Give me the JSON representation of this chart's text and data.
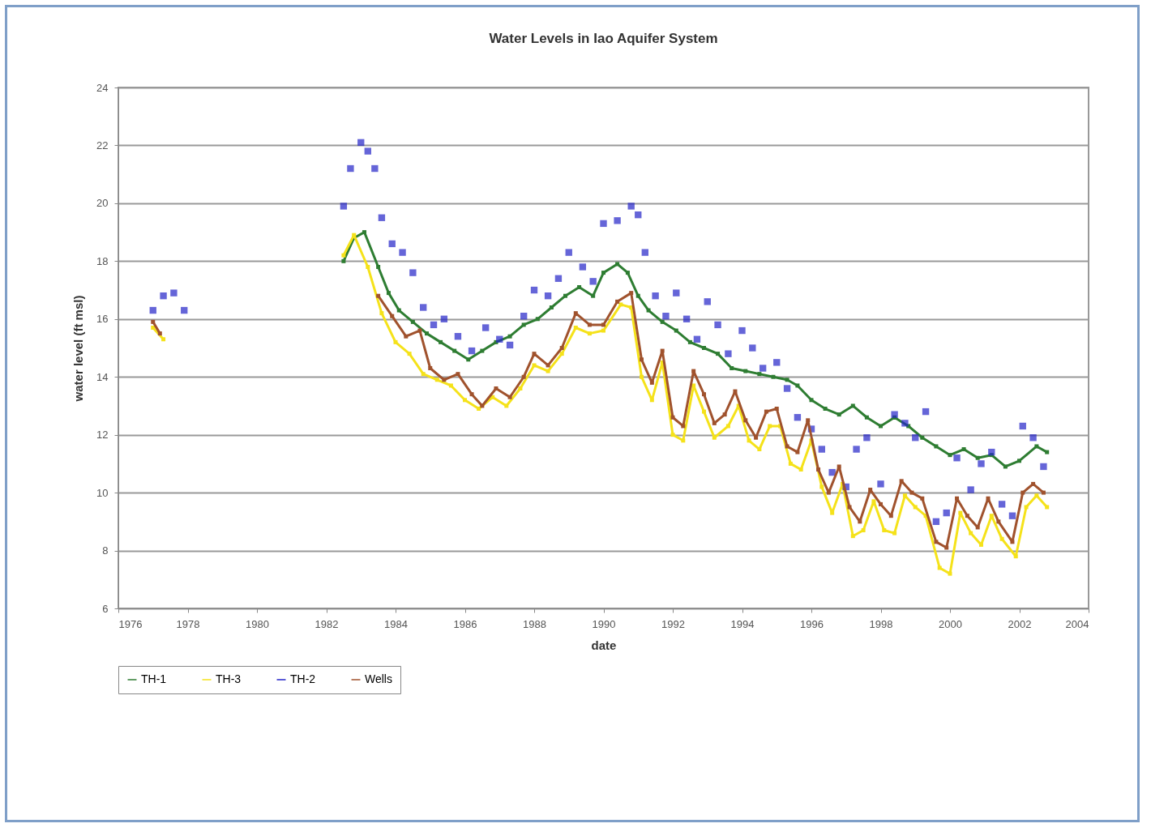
{
  "chart_data": {
    "type": "line",
    "title": "Water Levels in Iao Aquifer System",
    "xlabel": "date",
    "ylabel": "water level (ft msl)",
    "xlim": [
      1976,
      2004
    ],
    "xticks": [
      1976,
      1978,
      1980,
      1982,
      1984,
      1986,
      1988,
      1990,
      1992,
      1994,
      1996,
      1998,
      2000,
      2002,
      2004
    ],
    "ylim": [
      6,
      24
    ],
    "yticks": [
      6,
      8,
      10,
      12,
      14,
      16,
      18,
      20,
      22,
      24
    ],
    "grid": "y",
    "legend": "bottom",
    "marker": "square",
    "series": [
      {
        "name": "TH-1",
        "color": "#2e7d32",
        "x": [
          1982.5,
          1982.8,
          1983.1,
          1983.5,
          1983.8,
          1984.1,
          1984.5,
          1984.9,
          1985.3,
          1985.7,
          1986.1,
          1986.5,
          1986.9,
          1987.3,
          1987.7,
          1988.1,
          1988.5,
          1988.9,
          1989.3,
          1989.7,
          1990.0,
          1990.4,
          1990.7,
          1991.0,
          1991.3,
          1991.7,
          1992.1,
          1992.5,
          1992.9,
          1993.3,
          1993.7,
          1994.1,
          1994.5,
          1994.9,
          1995.3,
          1995.6,
          1996.0,
          1996.4,
          1996.8,
          1997.2,
          1997.6,
          1998.0,
          1998.4,
          1998.8,
          1999.2,
          1999.6,
          2000.0,
          2000.4,
          2000.8,
          2001.2,
          2001.6,
          2002.0,
          2002.5,
          2002.8
        ],
        "values": [
          18.0,
          18.8,
          19.0,
          17.8,
          16.9,
          16.3,
          15.9,
          15.5,
          15.2,
          14.9,
          14.6,
          14.9,
          15.2,
          15.4,
          15.8,
          16.0,
          16.4,
          16.8,
          17.1,
          16.8,
          17.6,
          17.9,
          17.6,
          16.8,
          16.3,
          15.9,
          15.6,
          15.2,
          15.0,
          14.8,
          14.3,
          14.2,
          14.1,
          14.0,
          13.9,
          13.7,
          13.2,
          12.9,
          12.7,
          13.0,
          12.6,
          12.3,
          12.6,
          12.3,
          11.9,
          11.6,
          11.3,
          11.5,
          11.2,
          11.3,
          10.9,
          11.1,
          11.6,
          11.4
        ]
      },
      {
        "name": "TH-3",
        "color": "#f5e21a",
        "x": [
          1977.0,
          1977.3,
          1980.0,
          1982.5,
          1982.8,
          1983.2,
          1983.6,
          1984.0,
          1984.4,
          1984.8,
          1985.2,
          1985.6,
          1986.0,
          1986.4,
          1986.8,
          1987.2,
          1987.6,
          1988.0,
          1988.4,
          1988.8,
          1989.2,
          1989.6,
          1990.0,
          1990.5,
          1990.8,
          1991.1,
          1991.4,
          1991.7,
          1992.0,
          1992.3,
          1992.6,
          1992.9,
          1993.2,
          1993.6,
          1993.9,
          1994.2,
          1994.5,
          1994.8,
          1995.1,
          1995.4,
          1995.7,
          1996.0,
          1996.3,
          1996.6,
          1996.9,
          1997.2,
          1997.5,
          1997.8,
          1998.1,
          1998.4,
          1998.7,
          1999.0,
          1999.3,
          1999.7,
          2000.0,
          2000.3,
          2000.6,
          2000.9,
          2001.2,
          2001.5,
          2001.9,
          2002.2,
          2002.5,
          2002.8
        ],
        "values": [
          15.7,
          15.3,
          null,
          18.2,
          18.9,
          17.8,
          16.2,
          15.2,
          14.8,
          14.1,
          13.9,
          13.7,
          13.2,
          12.9,
          13.3,
          13.0,
          13.6,
          14.4,
          14.2,
          14.8,
          15.7,
          15.5,
          15.6,
          16.5,
          16.4,
          14.0,
          13.2,
          14.5,
          12.0,
          11.8,
          13.7,
          12.8,
          11.9,
          12.3,
          13.0,
          11.8,
          11.5,
          12.3,
          12.3,
          11.0,
          10.8,
          11.8,
          10.2,
          9.3,
          10.3,
          8.5,
          8.7,
          9.7,
          8.7,
          8.6,
          9.9,
          9.5,
          9.2,
          7.4,
          7.2,
          9.3,
          8.6,
          8.2,
          9.2,
          8.4,
          7.8,
          9.5,
          9.9,
          9.5
        ]
      },
      {
        "name": "TH-2",
        "type": "scatter",
        "color": "#2323c8",
        "x": [
          1977.0,
          1977.3,
          1977.6,
          1977.9,
          1982.5,
          1982.7,
          1983.0,
          1983.2,
          1983.4,
          1983.6,
          1983.9,
          1984.2,
          1984.5,
          1984.8,
          1985.1,
          1985.4,
          1985.8,
          1986.2,
          1986.6,
          1987.0,
          1987.3,
          1987.7,
          1988.0,
          1988.4,
          1988.7,
          1989.0,
          1989.4,
          1989.7,
          1990.0,
          1990.4,
          1990.8,
          1991.0,
          1991.2,
          1991.5,
          1991.8,
          1992.1,
          1992.4,
          1992.7,
          1993.0,
          1993.3,
          1993.6,
          1994.0,
          1994.3,
          1994.6,
          1995.0,
          1995.3,
          1995.6,
          1996.0,
          1996.3,
          1996.6,
          1997.0,
          1997.3,
          1997.6,
          1998.0,
          1998.4,
          1998.7,
          1999.0,
          1999.3,
          1999.6,
          1999.9,
          2000.2,
          2000.6,
          2000.9,
          2001.2,
          2001.5,
          2001.8,
          2002.1,
          2002.4,
          2002.7
        ],
        "values": [
          16.3,
          16.8,
          16.9,
          16.3,
          19.9,
          21.2,
          22.1,
          21.8,
          21.2,
          19.5,
          18.6,
          18.3,
          17.6,
          16.4,
          15.8,
          16.0,
          15.4,
          14.9,
          15.7,
          15.3,
          15.1,
          16.1,
          17.0,
          16.8,
          17.4,
          18.3,
          17.8,
          17.3,
          19.3,
          19.4,
          19.9,
          19.6,
          18.3,
          16.8,
          16.1,
          16.9,
          16.0,
          15.3,
          16.6,
          15.8,
          14.8,
          15.6,
          15.0,
          14.3,
          14.5,
          13.6,
          12.6,
          12.2,
          11.5,
          10.7,
          10.2,
          11.5,
          11.9,
          10.3,
          12.7,
          12.4,
          11.9,
          12.8,
          9.0,
          9.3,
          11.2,
          10.1,
          11.0,
          11.4,
          9.6,
          9.2,
          12.3,
          11.9,
          10.9
        ]
      },
      {
        "name": "Wells",
        "color": "#a0522d",
        "x": [
          1977.0,
          1977.2,
          1980.0,
          1983.5,
          1983.9,
          1984.3,
          1984.7,
          1985.0,
          1985.4,
          1985.8,
          1986.2,
          1986.5,
          1986.9,
          1987.3,
          1987.7,
          1988.0,
          1988.4,
          1988.8,
          1989.2,
          1989.6,
          1990.0,
          1990.4,
          1990.8,
          1991.1,
          1991.4,
          1991.7,
          1992.0,
          1992.3,
          1992.6,
          1992.9,
          1993.2,
          1993.5,
          1993.8,
          1994.1,
          1994.4,
          1994.7,
          1995.0,
          1995.3,
          1995.6,
          1995.9,
          1996.2,
          1996.5,
          1996.8,
          1997.1,
          1997.4,
          1997.7,
          1998.0,
          1998.3,
          1998.6,
          1998.9,
          1999.2,
          1999.6,
          1999.9,
          2000.2,
          2000.5,
          2000.8,
          2001.1,
          2001.4,
          2001.8,
          2002.1,
          2002.4,
          2002.7
        ],
        "values": [
          15.9,
          15.5,
          null,
          16.8,
          16.1,
          15.4,
          15.6,
          14.3,
          13.9,
          14.1,
          13.4,
          13.0,
          13.6,
          13.3,
          14.0,
          14.8,
          14.4,
          15.0,
          16.2,
          15.8,
          15.8,
          16.6,
          16.9,
          14.6,
          13.8,
          14.9,
          12.6,
          12.3,
          14.2,
          13.4,
          12.4,
          12.7,
          13.5,
          12.5,
          11.9,
          12.8,
          12.9,
          11.6,
          11.4,
          12.5,
          10.8,
          10.0,
          10.9,
          9.5,
          9.0,
          10.1,
          9.6,
          9.2,
          10.4,
          10.0,
          9.8,
          8.3,
          8.1,
          9.8,
          9.2,
          8.8,
          9.8,
          9.0,
          8.3,
          10.0,
          10.3,
          10.0
        ]
      }
    ]
  }
}
